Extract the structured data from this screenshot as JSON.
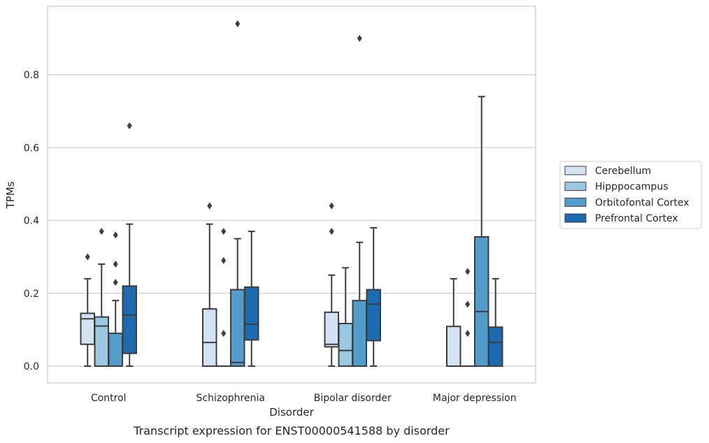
{
  "chart_data": {
    "type": "box",
    "caption": "Transcript expression for ENST00000541588 by disorder",
    "xlabel": "Disorder",
    "ylabel": "TPMs",
    "ylim": [
      -0.045,
      0.99
    ],
    "yticks": [
      0.0,
      0.2,
      0.4,
      0.6,
      0.8
    ],
    "ytick_labels": [
      "0.0",
      "0.2",
      "0.4",
      "0.6",
      "0.8"
    ],
    "grid": "horizontal",
    "legend_position": "right",
    "categories": [
      "Control",
      "Schizophrenia",
      "Bipolar disorder",
      "Major depression"
    ],
    "series": [
      {
        "name": "Cerebellum",
        "color": "#d3e3f3",
        "boxes": [
          {
            "whislo": 0.0,
            "q1": 0.06,
            "med": 0.13,
            "q3": 0.145,
            "whishi": 0.24,
            "fliers": [
              0.3
            ]
          },
          {
            "whislo": 0.0,
            "q1": 0.0,
            "med": 0.065,
            "q3": 0.157,
            "whishi": 0.39,
            "fliers": [
              0.44
            ]
          },
          {
            "whislo": 0.0,
            "q1": 0.053,
            "med": 0.06,
            "q3": 0.148,
            "whishi": 0.25,
            "fliers": [
              0.37,
              0.44
            ]
          },
          {
            "whislo": 0.0,
            "q1": 0.0,
            "med": 0.0,
            "q3": 0.109,
            "whishi": 0.24,
            "fliers": []
          }
        ]
      },
      {
        "name": "Hipppocampus",
        "color": "#9ac8e0",
        "boxes": [
          {
            "whislo": 0.0,
            "q1": 0.0,
            "med": 0.11,
            "q3": 0.135,
            "whishi": 0.28,
            "fliers": [
              0.37
            ]
          },
          {
            "whislo": 0.0,
            "q1": 0.0,
            "med": 0.0,
            "q3": 0.0,
            "whishi": 0.0,
            "fliers": [
              0.09,
              0.29,
              0.37
            ]
          },
          {
            "whislo": 0.0,
            "q1": 0.0,
            "med": 0.043,
            "q3": 0.117,
            "whishi": 0.27,
            "fliers": []
          },
          {
            "whislo": 0.0,
            "q1": 0.0,
            "med": 0.0,
            "q3": 0.0,
            "whishi": 0.0,
            "fliers": [
              0.09,
              0.17,
              0.26
            ]
          }
        ]
      },
      {
        "name": "Orbitofontal Cortex",
        "color": "#529dcc",
        "boxes": [
          {
            "whislo": 0.0,
            "q1": 0.0,
            "med": 0.0,
            "q3": 0.09,
            "whishi": 0.18,
            "fliers": [
              0.23,
              0.28,
              0.36
            ]
          },
          {
            "whislo": 0.0,
            "q1": 0.0,
            "med": 0.01,
            "q3": 0.21,
            "whishi": 0.35,
            "fliers": [
              0.94
            ]
          },
          {
            "whislo": 0.0,
            "q1": 0.0,
            "med": 0.0,
            "q3": 0.18,
            "whishi": 0.34,
            "fliers": [
              0.9
            ]
          },
          {
            "whislo": 0.0,
            "q1": 0.0,
            "med": 0.15,
            "q3": 0.355,
            "whishi": 0.74,
            "fliers": []
          }
        ]
      },
      {
        "name": "Prefrontal Cortex",
        "color": "#1c6aaf",
        "boxes": [
          {
            "whislo": 0.0,
            "q1": 0.035,
            "med": 0.14,
            "q3": 0.22,
            "whishi": 0.39,
            "fliers": [
              0.66
            ]
          },
          {
            "whislo": 0.0,
            "q1": 0.072,
            "med": 0.115,
            "q3": 0.217,
            "whishi": 0.37,
            "fliers": []
          },
          {
            "whislo": 0.0,
            "q1": 0.07,
            "med": 0.17,
            "q3": 0.21,
            "whishi": 0.38,
            "fliers": []
          },
          {
            "whislo": 0.0,
            "q1": 0.0,
            "med": 0.065,
            "q3": 0.107,
            "whishi": 0.24,
            "fliers": []
          }
        ]
      }
    ]
  }
}
